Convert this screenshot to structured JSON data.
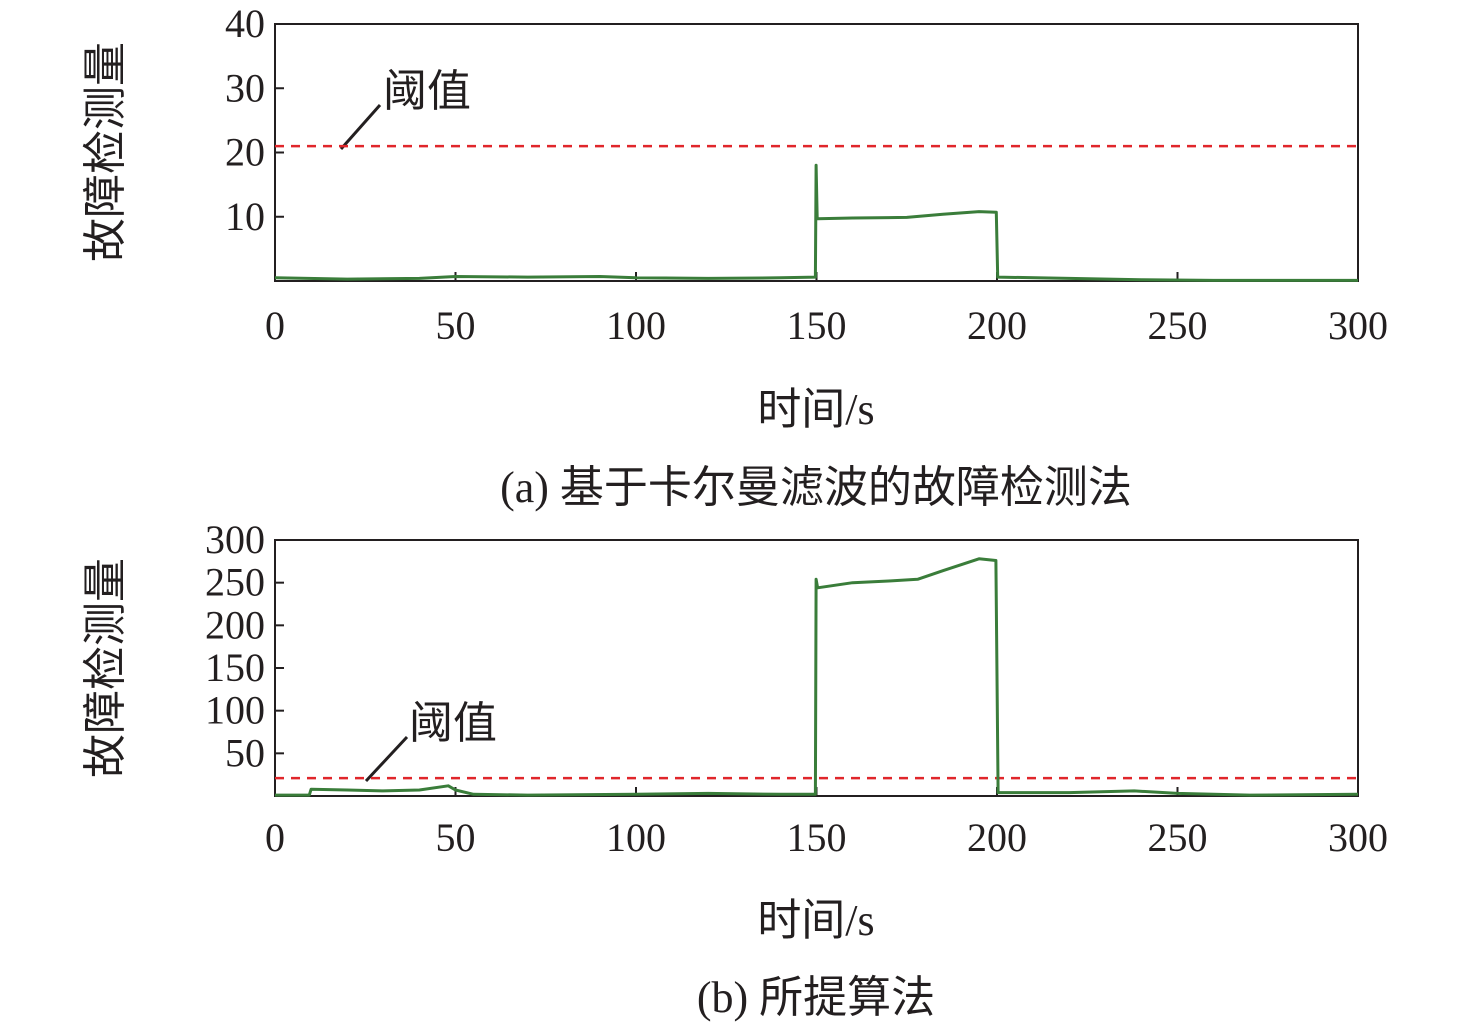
{
  "colors": {
    "series": "#3a7d3a",
    "threshold": "#e0262b",
    "axis": "#231f20"
  },
  "chart_data": [
    {
      "type": "line",
      "caption": "(a) 基于卡尔曼滤波的故障检测法",
      "xlabel": "时间/s",
      "ylabel": "故障检测量",
      "xlim": [
        0,
        300
      ],
      "ylim": [
        0,
        40
      ],
      "xticks": [
        "0",
        "50",
        "100",
        "150",
        "200",
        "250",
        "300"
      ],
      "xtick_values": [
        0,
        50,
        100,
        150,
        200,
        250,
        300
      ],
      "yticks": [
        "10",
        "20",
        "30",
        "40"
      ],
      "ytick_values": [
        10,
        20,
        30,
        40
      ],
      "threshold": {
        "label": "阈值",
        "value": 21
      },
      "grid": false,
      "series": [
        {
          "x": [
            0,
            20,
            40,
            50,
            70,
            90,
            100,
            120,
            140,
            149.7,
            149.9,
            150.2,
            160,
            175,
            185,
            195,
            199.8,
            200.2,
            220,
            240,
            260,
            280,
            300
          ],
          "y": [
            0.5,
            0.3,
            0.4,
            0.7,
            0.6,
            0.7,
            0.5,
            0.4,
            0.5,
            0.6,
            18.0,
            9.7,
            9.8,
            9.9,
            10.4,
            10.8,
            10.7,
            0.6,
            0.4,
            0.2,
            0.1,
            0.1,
            0.1
          ]
        }
      ]
    },
    {
      "type": "line",
      "caption": "(b) 所提算法",
      "xlabel": "时间/s",
      "ylabel": "故障检测量",
      "xlim": [
        0,
        300
      ],
      "ylim": [
        0,
        300
      ],
      "xticks": [
        "0",
        "50",
        "100",
        "150",
        "200",
        "250",
        "300"
      ],
      "xtick_values": [
        0,
        50,
        100,
        150,
        200,
        250,
        300
      ],
      "yticks": [
        "50",
        "100",
        "150",
        "200",
        "250",
        "300"
      ],
      "ytick_values": [
        50,
        100,
        150,
        200,
        250,
        300
      ],
      "threshold": {
        "label": "阈值",
        "value": 21
      },
      "grid": false,
      "series": [
        {
          "x": [
            0,
            9.5,
            10,
            20,
            30,
            40,
            48,
            50,
            55,
            70,
            100,
            120,
            140,
            149.7,
            149.9,
            150.3,
            160,
            170,
            178,
            185,
            195,
            199.7,
            200.3,
            220,
            238,
            250,
            270,
            300
          ],
          "y": [
            1,
            1,
            8,
            7,
            6,
            7,
            12,
            7,
            2,
            1,
            2,
            3,
            2,
            2,
            254,
            244,
            250,
            252,
            254,
            264,
            278,
            276,
            4,
            4,
            6,
            3,
            1,
            2
          ]
        }
      ]
    }
  ]
}
